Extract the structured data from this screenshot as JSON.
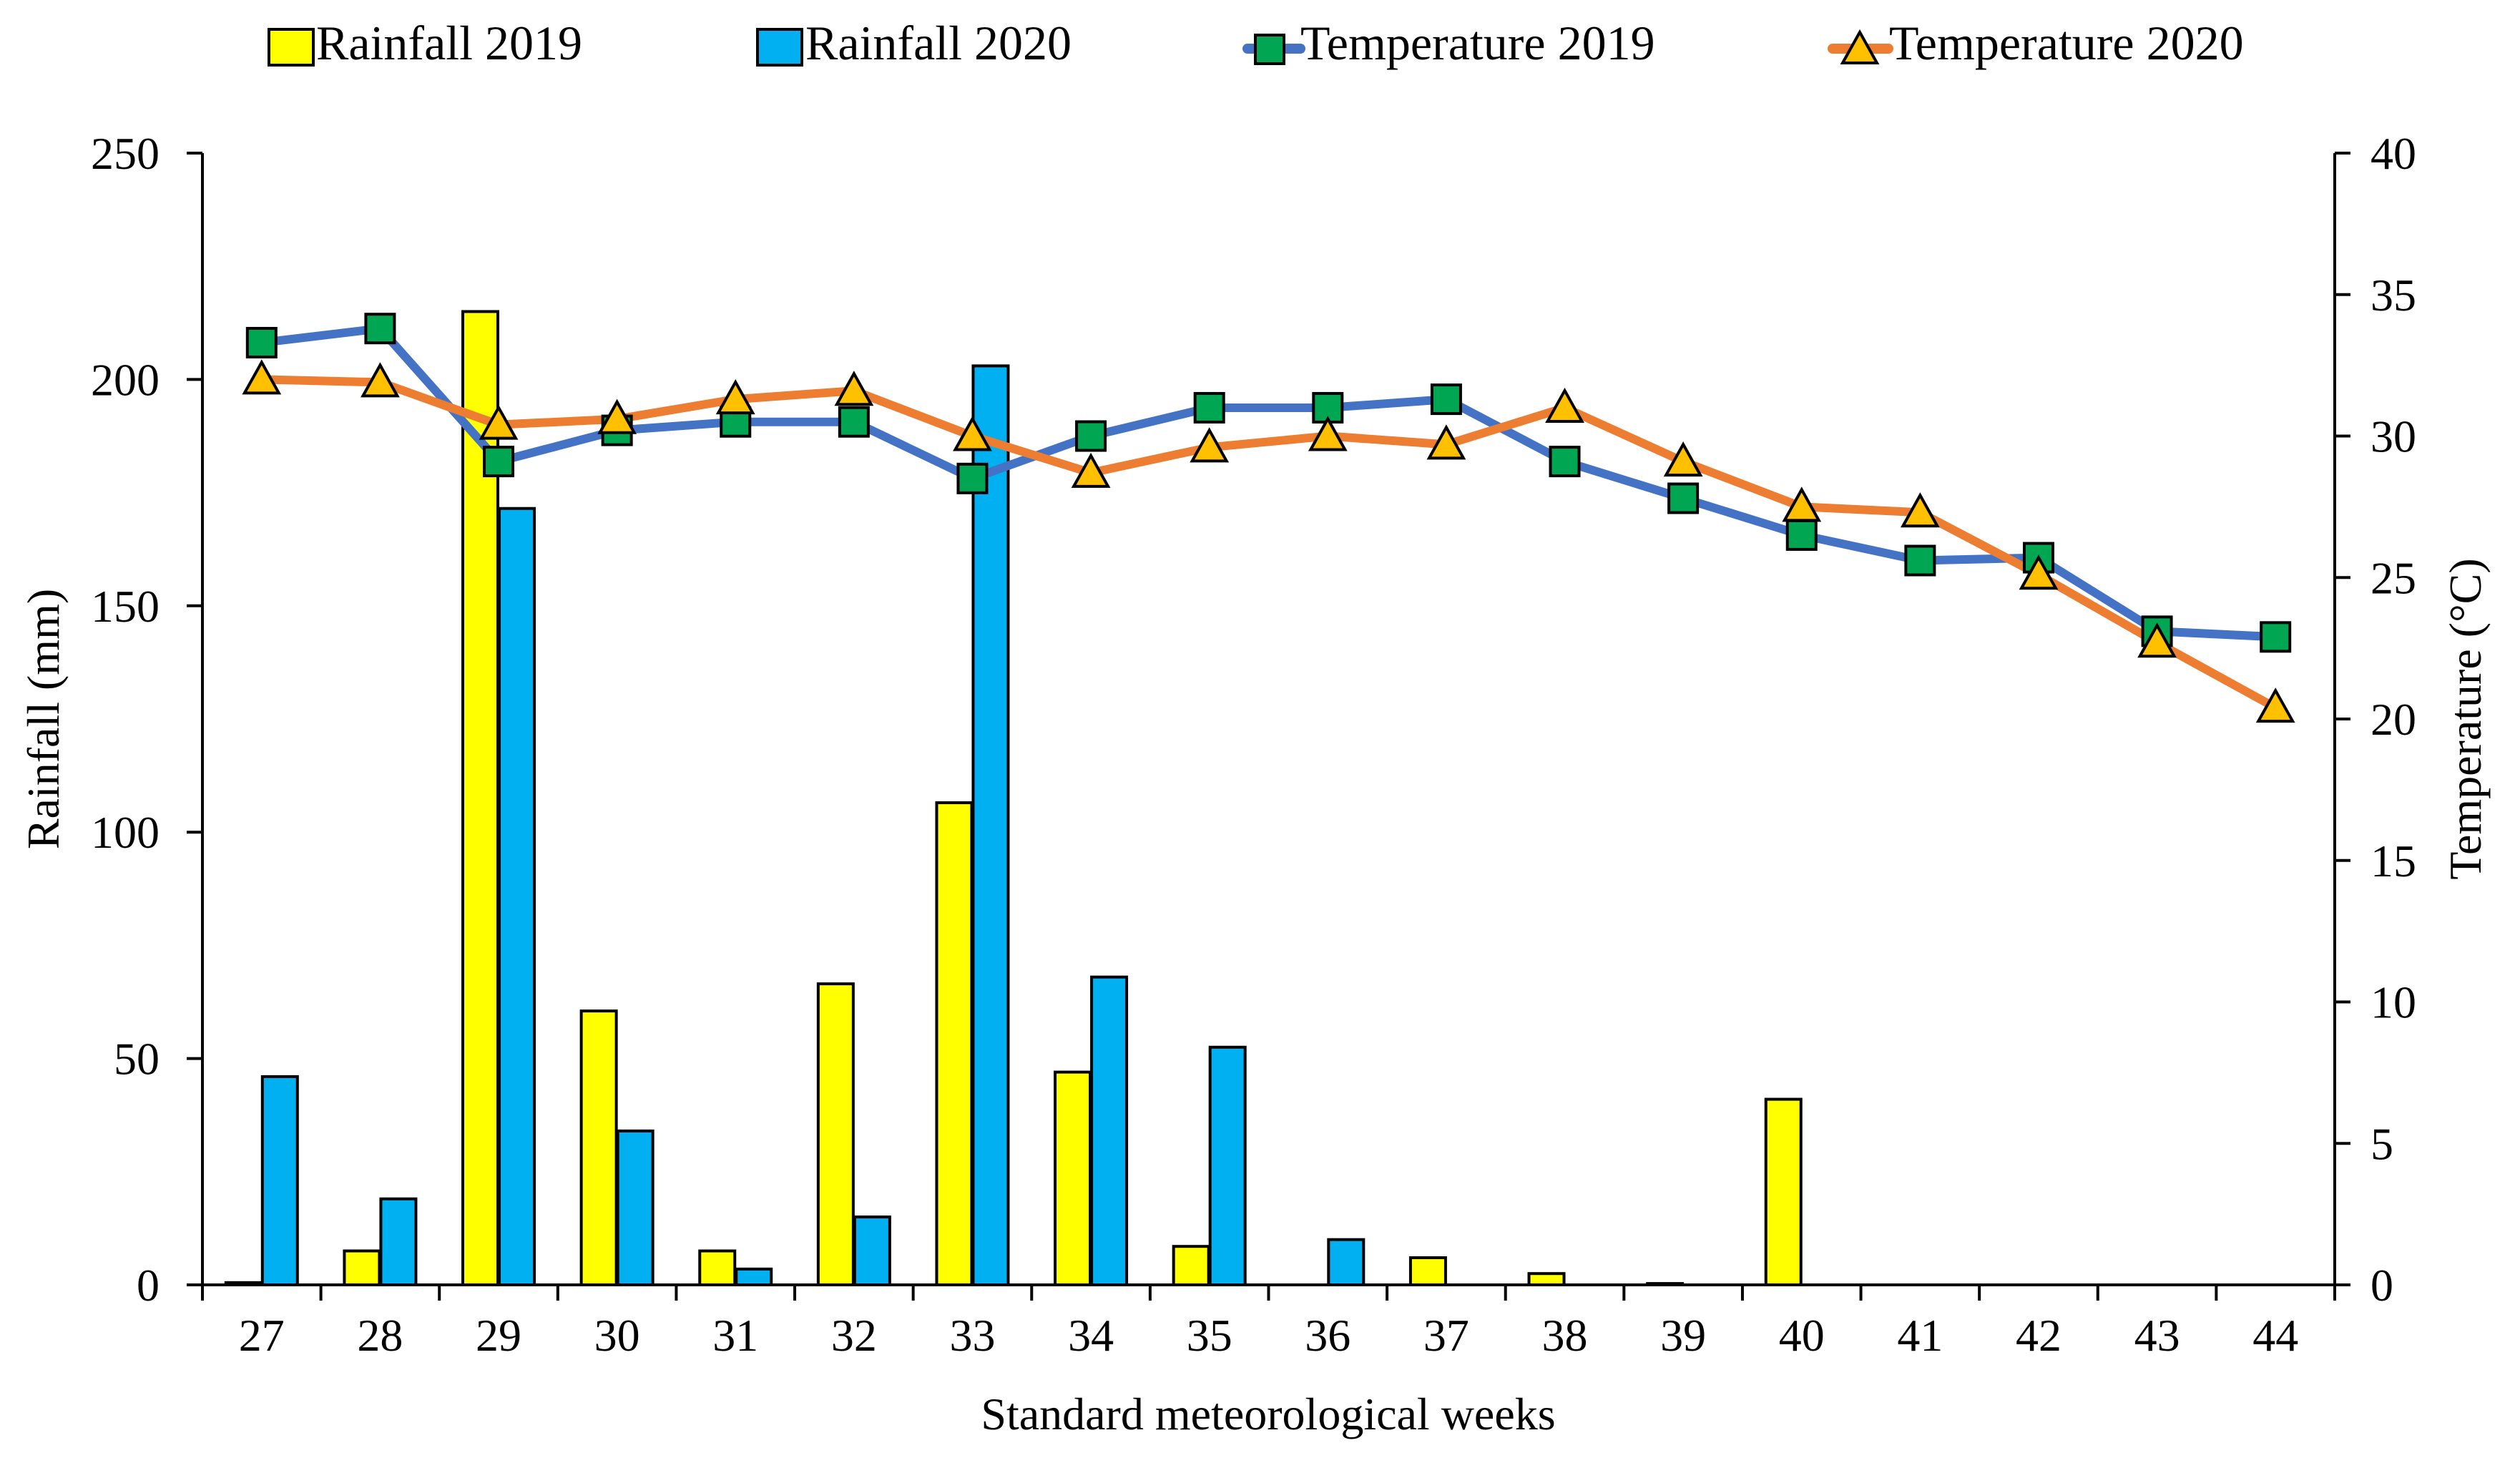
{
  "chart_data": {
    "type": "bar+line",
    "xlabel": "Standard meteorological weeks",
    "ylabel_left": "Rainfall (mm)",
    "ylabel_right": "Temperature (°C)",
    "categories": [
      "27",
      "28",
      "29",
      "30",
      "31",
      "32",
      "33",
      "34",
      "35",
      "36",
      "37",
      "38",
      "39",
      "40",
      "41",
      "42",
      "43",
      "44"
    ],
    "y_left": {
      "min": 0,
      "max": 250,
      "step": 50,
      "ticks": [
        "0",
        "50",
        "100",
        "150",
        "200",
        "250"
      ]
    },
    "y_right": {
      "min": 0,
      "max": 40,
      "step": 5,
      "ticks": [
        "0",
        "5",
        "10",
        "15",
        "20",
        "25",
        "30",
        "35",
        "40"
      ]
    },
    "bar_series": [
      {
        "name": "Rainfall 2019",
        "color": "#FFFF00",
        "values": [
          0.5,
          7.5,
          215,
          60.5,
          7.5,
          66.5,
          106.5,
          47,
          8.5,
          0,
          6,
          2.5,
          0.3,
          41,
          0,
          0,
          0,
          0
        ]
      },
      {
        "name": "Rainfall 2020",
        "color": "#00B0F0",
        "values": [
          46,
          19,
          171.5,
          34,
          3.5,
          15,
          203,
          68,
          52.5,
          10,
          0,
          0,
          0,
          0,
          0,
          0,
          0,
          0
        ]
      }
    ],
    "line_series": [
      {
        "name": "Temperature 2019",
        "line_color": "#4472C4",
        "marker_color": "#00A651",
        "marker": "square",
        "values": [
          33.3,
          33.8,
          29.1,
          30.2,
          30.5,
          30.5,
          28.5,
          30.0,
          31.0,
          31.0,
          31.3,
          29.1,
          27.8,
          26.5,
          25.6,
          25.7,
          23.1,
          22.9
        ]
      },
      {
        "name": "Temperature 2020",
        "line_color": "#ED7D31",
        "marker_color": "#FFC000",
        "marker": "triangle",
        "values": [
          32.0,
          31.9,
          30.4,
          30.6,
          31.3,
          31.6,
          30.0,
          28.7,
          29.6,
          30.0,
          29.7,
          31.0,
          29.1,
          27.5,
          27.3,
          25.1,
          22.7,
          20.4
        ]
      }
    ],
    "legend_position": "top"
  }
}
